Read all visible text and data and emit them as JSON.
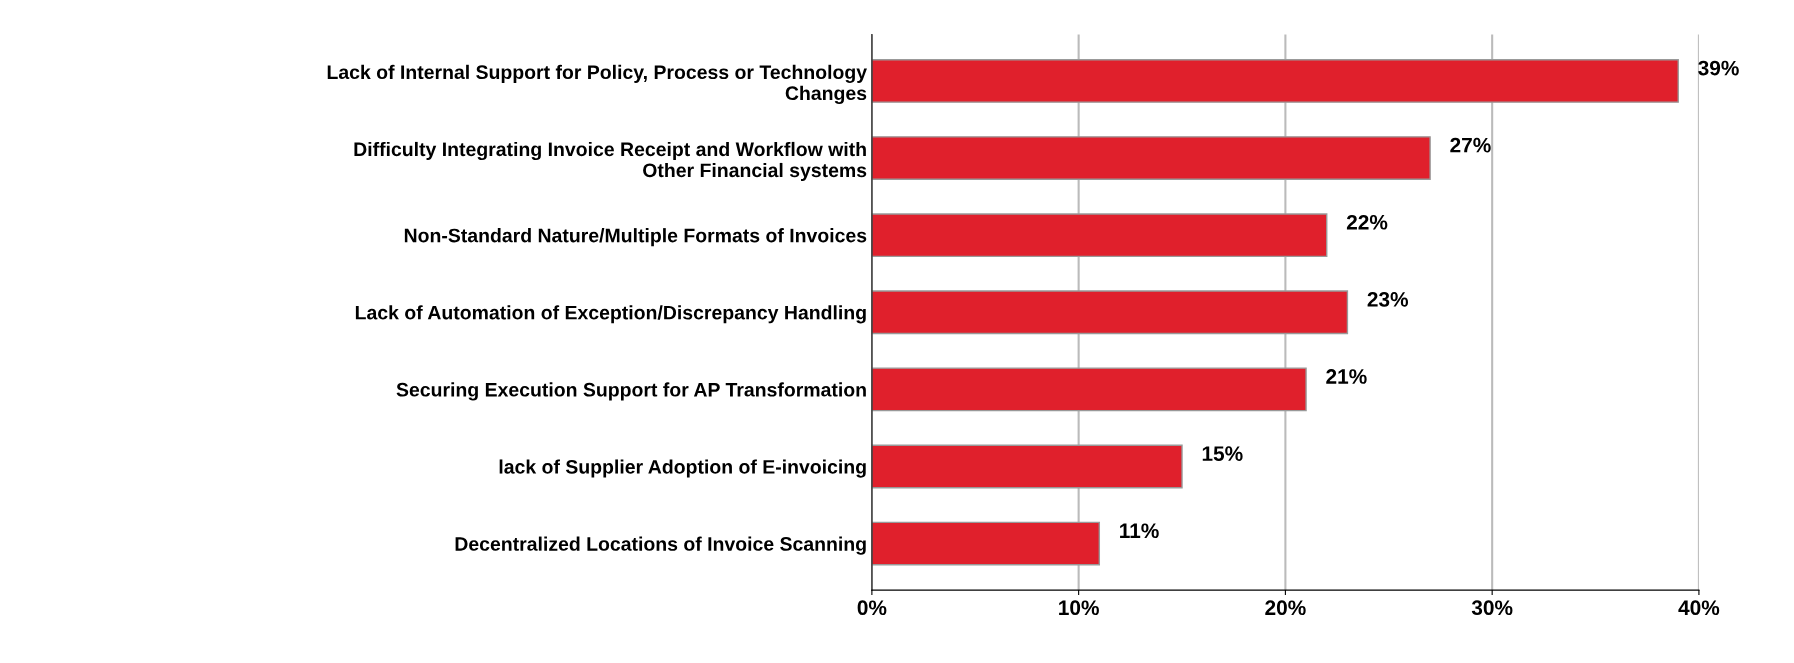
{
  "chart_data": {
    "type": "bar",
    "orientation": "horizontal",
    "categories": [
      "Lack of Internal Support for Policy, Process or Technology Changes",
      "Difficulty Integrating Invoice Receipt and Workflow with Other Financial systems",
      "Non-Standard Nature/Multiple Formats of Invoices",
      "Lack of Automation of Exception/Discrepancy Handling",
      "Securing Execution Support for AP Transformation",
      "lack of Supplier Adoption of E-invoicing",
      "Decentralized Locations of Invoice Scanning"
    ],
    "values": [
      39,
      27,
      22,
      23,
      21,
      15,
      11
    ],
    "value_labels": [
      "39%",
      "27%",
      "22%",
      "23%",
      "21%",
      "15%",
      "11%"
    ],
    "color": "#e0202c",
    "xlim": [
      0,
      40
    ],
    "xticks": [
      {
        "value": 0,
        "label": "0%"
      },
      {
        "value": 10,
        "label": "10%"
      },
      {
        "value": 20,
        "label": "20%"
      },
      {
        "value": 30,
        "label": "30%"
      },
      {
        "value": 40,
        "label": "40%"
      }
    ],
    "grid": "x",
    "legend": false
  }
}
